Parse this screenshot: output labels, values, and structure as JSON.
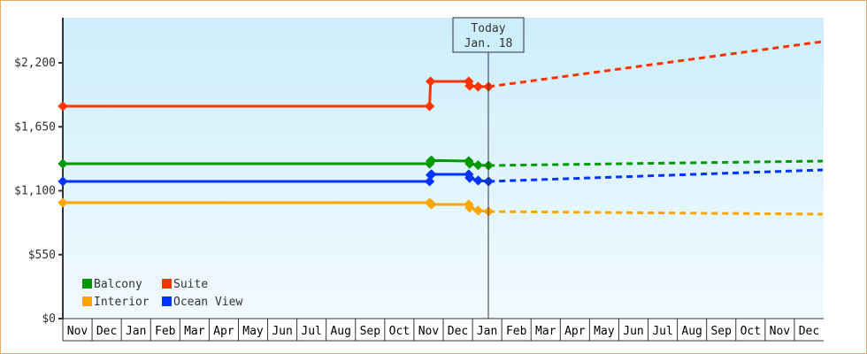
{
  "chart_data": {
    "type": "line",
    "title": "",
    "xlabel": "",
    "ylabel": "",
    "ylim": [
      0,
      2640
    ],
    "y_ticks": [
      0,
      550,
      1100,
      1650,
      2200
    ],
    "y_tick_labels": [
      "$0",
      "$550",
      "$1,100",
      "$1,650",
      "$2,200"
    ],
    "x_tick_labels": [
      "Nov",
      "Dec",
      "Jan",
      "Feb",
      "Mar",
      "Apr",
      "May",
      "Jun",
      "Jul",
      "Aug",
      "Sep",
      "Oct",
      "Nov",
      "Dec",
      "Jan",
      "Feb",
      "Mar",
      "Apr",
      "May",
      "Jun",
      "Jul",
      "Aug",
      "Sep",
      "Oct",
      "Nov",
      "Dec"
    ],
    "grid": false,
    "background": [
      "#cdeefb",
      "#f2faff"
    ],
    "legend": {
      "placement": "bottom-left"
    },
    "today_marker": {
      "line1": "Today",
      "line2": "Jan. 18",
      "date": {
        "year": 3,
        "month": 1,
        "day": 18
      }
    },
    "series": [
      {
        "name": "Balcony",
        "color": "#009900",
        "history": [
          {
            "year": 1,
            "month": 11,
            "day": 1,
            "price": 1332
          },
          {
            "year": 2,
            "month": 11,
            "day": 17,
            "price": 1332
          },
          {
            "year": 2,
            "month": 11,
            "day": 18,
            "price": 1355
          },
          {
            "year": 2,
            "month": 11,
            "day": 19,
            "price": 1360
          },
          {
            "year": 2,
            "month": 12,
            "day": 28,
            "price": 1355
          },
          {
            "year": 2,
            "month": 12,
            "day": 29,
            "price": 1332
          },
          {
            "year": 3,
            "month": 1,
            "day": 7,
            "price": 1320
          },
          {
            "year": 3,
            "month": 1,
            "day": 18,
            "price": 1317
          }
        ],
        "forecast": [
          {
            "year": 3,
            "month": 1,
            "day": 18,
            "price": 1317
          },
          {
            "year": 3,
            "month": 12,
            "day": 31,
            "price": 1355
          }
        ]
      },
      {
        "name": "Suite",
        "color": "#ff3300",
        "history": [
          {
            "year": 1,
            "month": 11,
            "day": 1,
            "price": 1827
          },
          {
            "year": 2,
            "month": 11,
            "day": 17,
            "price": 1827
          },
          {
            "year": 2,
            "month": 11,
            "day": 18,
            "price": 2040
          },
          {
            "year": 2,
            "month": 12,
            "day": 28,
            "price": 2040
          },
          {
            "year": 2,
            "month": 12,
            "day": 29,
            "price": 2002
          },
          {
            "year": 3,
            "month": 1,
            "day": 7,
            "price": 1995
          },
          {
            "year": 3,
            "month": 1,
            "day": 18,
            "price": 1995
          }
        ],
        "forecast": [
          {
            "year": 3,
            "month": 1,
            "day": 18,
            "price": 1995
          },
          {
            "year": 3,
            "month": 12,
            "day": 31,
            "price": 2383
          }
        ]
      },
      {
        "name": "Interior",
        "color": "#ffa500",
        "history": [
          {
            "year": 1,
            "month": 11,
            "day": 1,
            "price": 997
          },
          {
            "year": 2,
            "month": 11,
            "day": 17,
            "price": 997
          },
          {
            "year": 2,
            "month": 11,
            "day": 18,
            "price": 990
          },
          {
            "year": 2,
            "month": 11,
            "day": 19,
            "price": 982
          },
          {
            "year": 2,
            "month": 12,
            "day": 28,
            "price": 982
          },
          {
            "year": 2,
            "month": 12,
            "day": 29,
            "price": 955
          },
          {
            "year": 3,
            "month": 1,
            "day": 7,
            "price": 929
          },
          {
            "year": 3,
            "month": 1,
            "day": 18,
            "price": 921
          }
        ],
        "forecast": [
          {
            "year": 3,
            "month": 1,
            "day": 18,
            "price": 921
          },
          {
            "year": 3,
            "month": 12,
            "day": 31,
            "price": 898
          }
        ]
      },
      {
        "name": "Ocean View",
        "color": "#0033ff",
        "history": [
          {
            "year": 1,
            "month": 11,
            "day": 1,
            "price": 1180
          },
          {
            "year": 2,
            "month": 11,
            "day": 17,
            "price": 1180
          },
          {
            "year": 2,
            "month": 11,
            "day": 18,
            "price": 1235
          },
          {
            "year": 2,
            "month": 11,
            "day": 19,
            "price": 1241
          },
          {
            "year": 2,
            "month": 12,
            "day": 28,
            "price": 1241
          },
          {
            "year": 2,
            "month": 12,
            "day": 29,
            "price": 1210
          },
          {
            "year": 3,
            "month": 1,
            "day": 7,
            "price": 1188
          },
          {
            "year": 3,
            "month": 1,
            "day": 18,
            "price": 1180
          }
        ],
        "forecast": [
          {
            "year": 3,
            "month": 1,
            "day": 18,
            "price": 1180
          },
          {
            "year": 3,
            "month": 12,
            "day": 31,
            "price": 1279
          }
        ]
      }
    ]
  }
}
